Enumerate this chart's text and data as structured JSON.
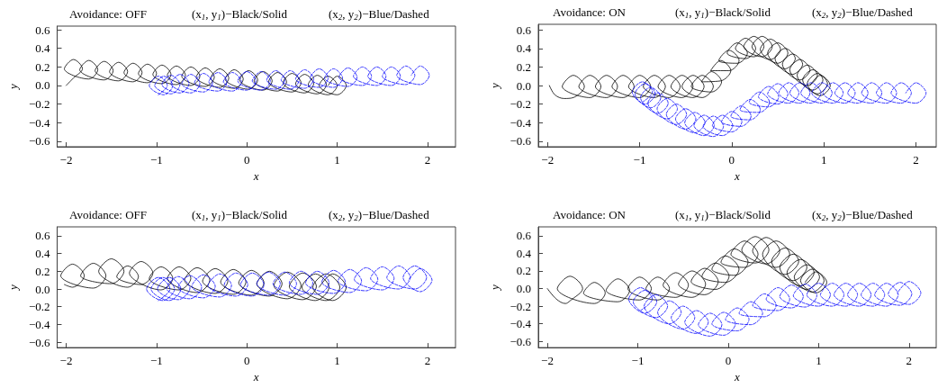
{
  "chart_data": [
    {
      "type": "line",
      "title": "Avoidance: OFF",
      "annotations": [
        "(x$_{1}$, y$_{1}$)−Black/Solid",
        "(x$_{2}$, y$_{2}$)−Blue/Dashed"
      ],
      "xlabel": "x",
      "ylabel": "y",
      "xlim": [
        -2.1,
        2.31
      ],
      "ylim": [
        -0.66,
        0.64
      ],
      "xticks": [
        -2,
        -1,
        0,
        1,
        2
      ],
      "yticks": [
        {
          "value": -0.6,
          "label": "−0.6"
        },
        {
          "value": -0.4,
          "label": "−0.4"
        },
        {
          "value": -0.2,
          "label": "−0.2"
        },
        {
          "value": 0,
          "label": "0.0"
        },
        0.2,
        0.4,
        0.6
      ],
      "marker": "none",
      "series": [
        {
          "color": "#000000",
          "line_style": "solid",
          "x": [
            -2,
            -1.92,
            -1.82,
            -1.92,
            -2.02,
            -1.75,
            -1.65,
            -1.75,
            -1.85,
            -1.58,
            -1.48,
            -1.58,
            -1.68,
            -1.42,
            -1.32,
            -1.42,
            -1.52,
            -1.26,
            -1.16,
            -1.26,
            -1.36,
            -1.1,
            -1.0,
            -1.1,
            -1.2,
            -0.94,
            -0.84,
            -0.94,
            -1.04,
            -0.78,
            -0.68,
            -0.78,
            -0.88,
            -0.62,
            -0.52,
            -0.62,
            -0.72,
            -0.46,
            -0.36,
            -0.46,
            -0.56,
            -0.3,
            -0.2,
            -0.3,
            -0.4,
            -0.14,
            -0.04,
            -0.14,
            -0.24,
            0.02,
            0.12,
            0.02,
            -0.08,
            0.18,
            0.28,
            0.18,
            0.08,
            0.34,
            0.44,
            0.34,
            0.24,
            0.5,
            0.6,
            0.5,
            0.4,
            0.64,
            0.74,
            0.64,
            0.54,
            0.78,
            0.88,
            0.78,
            0.68,
            0.9,
            1.0,
            0.9,
            0.8,
            1.0,
            1.1,
            1.0,
            0.9
          ],
          "values": [
            0,
            0.08,
            0.18,
            0.28,
            0.18,
            0.07,
            0.17,
            0.27,
            0.17,
            0.06,
            0.16,
            0.26,
            0.16,
            0.05,
            0.15,
            0.25,
            0.15,
            0.04,
            0.14,
            0.24,
            0.14,
            0.03,
            0.13,
            0.23,
            0.13,
            0.02,
            0.12,
            0.22,
            0.12,
            0.01,
            0.11,
            0.21,
            0.11,
            0,
            0.1,
            0.2,
            0.1,
            -0.01,
            0.09,
            0.19,
            0.09,
            -0.02,
            0.08,
            0.18,
            0.08,
            -0.03,
            0.07,
            0.17,
            0.07,
            -0.04,
            0.06,
            0.16,
            0.06,
            -0.05,
            0.05,
            0.15,
            0.05,
            -0.06,
            0.04,
            0.14,
            0.04,
            -0.07,
            0.03,
            0.13,
            0.03,
            -0.08,
            0.02,
            0.12,
            0.02,
            -0.09,
            0.01,
            0.11,
            0.01,
            -0.1,
            0,
            0.1,
            0,
            -0.1,
            0,
            0.1,
            0
          ]
        },
        {
          "color": "#0000ff",
          "line_style": "dashed",
          "x": [
            -0.98,
            -0.88,
            -0.98,
            -1.08,
            -0.92,
            -0.82,
            -0.92,
            -1.02,
            -0.84,
            -0.74,
            -0.84,
            -0.94,
            -0.74,
            -0.64,
            -0.74,
            -0.84,
            -0.62,
            -0.52,
            -0.62,
            -0.72,
            -0.48,
            -0.38,
            -0.48,
            -0.58,
            -0.32,
            -0.22,
            -0.32,
            -0.42,
            -0.16,
            -0.06,
            -0.16,
            -0.26,
            0,
            0.1,
            0,
            -0.1,
            0.16,
            0.26,
            0.16,
            0.06,
            0.32,
            0.42,
            0.32,
            0.22,
            0.48,
            0.58,
            0.48,
            0.38,
            0.64,
            0.74,
            0.64,
            0.54,
            0.8,
            0.9,
            0.8,
            0.7,
            0.96,
            1.06,
            0.96,
            0.86,
            1.12,
            1.22,
            1.12,
            1.02,
            1.28,
            1.38,
            1.28,
            1.18,
            1.44,
            1.54,
            1.44,
            1.34,
            1.6,
            1.7,
            1.6,
            1.5,
            1.76,
            1.86,
            1.76,
            1.66,
            1.92,
            2.02,
            1.92,
            1.82
          ],
          "values": [
            -0.1,
            0,
            0.1,
            0,
            -0.1,
            0,
            0.1,
            0,
            -0.09,
            0.01,
            0.11,
            0.01,
            -0.08,
            0.02,
            0.12,
            0.02,
            -0.08,
            0.02,
            0.12,
            0.02,
            -0.07,
            0.03,
            0.13,
            0.03,
            -0.06,
            0.04,
            0.14,
            0.04,
            -0.06,
            0.04,
            0.14,
            0.04,
            -0.05,
            0.05,
            0.15,
            0.05,
            -0.05,
            0.05,
            0.15,
            0.05,
            -0.04,
            0.06,
            0.16,
            0.06,
            -0.04,
            0.06,
            0.16,
            0.06,
            -0.03,
            0.07,
            0.17,
            0.07,
            -0.02,
            0.08,
            0.18,
            0.08,
            -0.02,
            0.08,
            0.18,
            0.08,
            -0.01,
            0.09,
            0.19,
            0.09,
            0,
            0.1,
            0.2,
            0.1,
            0,
            0.1,
            0.2,
            0.1,
            0,
            0.1,
            0.2,
            0.1,
            0.01,
            0.11,
            0.21,
            0.11,
            0.01,
            0.11,
            0.21,
            0.11
          ]
        }
      ]
    },
    {
      "type": "line",
      "title": "Avoidance: ON",
      "annotations": [
        "(x$_{1}$, y$_{1}$)−Black/Solid",
        "(x$_{2}$, y$_{2}$)−Blue/Dashed"
      ],
      "xlabel": "x",
      "ylabel": "y",
      "xlim": [
        -2.1,
        2.22
      ],
      "ylim": [
        -0.66,
        0.66
      ],
      "xticks": [
        -2,
        -1,
        0,
        1,
        2
      ],
      "yticks": [
        {
          "value": -0.6,
          "label": "−0.6"
        },
        {
          "value": -0.4,
          "label": "−0.4"
        },
        {
          "value": -0.2,
          "label": "−0.2"
        },
        {
          "value": 0,
          "label": "0.0"
        },
        0.2,
        0.4,
        0.6
      ],
      "marker": "none",
      "series": [
        {
          "color": "#000000",
          "line_style": "solid",
          "x": [
            -1.98,
            -1.92,
            -1.82,
            -1.72,
            -1.6,
            -1.72,
            -1.84,
            -1.54,
            -1.42,
            -1.54,
            -1.66,
            -1.36,
            -1.24,
            -1.36,
            -1.48,
            -1.18,
            -1.06,
            -1.18,
            -1.3,
            -1.0,
            -0.88,
            -1.0,
            -1.12,
            -0.84,
            -0.72,
            -0.84,
            -0.96,
            -0.68,
            -0.56,
            -0.68,
            -0.8,
            -0.54,
            -0.42,
            -0.54,
            -0.66,
            -0.42,
            -0.3,
            -0.42,
            -0.54,
            -0.32,
            -0.2,
            -0.32,
            -0.44,
            -0.22,
            -0.11,
            -0.22,
            -0.33,
            -0.12,
            -0.01,
            -0.12,
            -0.23,
            -0.03,
            0.08,
            -0.03,
            -0.14,
            0.06,
            0.17,
            0.06,
            -0.05,
            0.15,
            0.26,
            0.15,
            0.04,
            0.24,
            0.35,
            0.24,
            0.13,
            0.33,
            0.44,
            0.33,
            0.22,
            0.42,
            0.53,
            0.42,
            0.31,
            0.5,
            0.61,
            0.5,
            0.39,
            0.58,
            0.69,
            0.58,
            0.47,
            0.66,
            0.77,
            0.66,
            0.55,
            0.74,
            0.85,
            0.74,
            0.63,
            0.82,
            0.93,
            0.82,
            0.71,
            0.88,
            0.99,
            0.88,
            0.77,
            0.93,
            1.04,
            0.93,
            0.82,
            0.96,
            1.07,
            0.96,
            0.85
          ],
          "values": [
            0,
            -0.1,
            -0.14,
            -0.13,
            -0.01,
            0.11,
            -0.01,
            -0.13,
            -0.01,
            0.11,
            -0.01,
            -0.13,
            -0.01,
            0.11,
            -0.01,
            -0.13,
            -0.01,
            0.11,
            -0.01,
            -0.13,
            -0.01,
            0.11,
            -0.01,
            -0.13,
            -0.01,
            0.11,
            -0.01,
            -0.13,
            -0.01,
            0.11,
            -0.01,
            -0.13,
            -0.01,
            0.11,
            -0.01,
            -0.13,
            -0.01,
            0.11,
            -0.01,
            -0.13,
            -0.01,
            0.11,
            -0.01,
            -0.07,
            0.04,
            0.15,
            0.04,
            0.05,
            0.16,
            0.27,
            0.16,
            0.16,
            0.27,
            0.38,
            0.27,
            0.24,
            0.35,
            0.46,
            0.35,
            0.29,
            0.4,
            0.51,
            0.4,
            0.31,
            0.42,
            0.53,
            0.42,
            0.31,
            0.42,
            0.53,
            0.42,
            0.28,
            0.39,
            0.5,
            0.39,
            0.24,
            0.35,
            0.46,
            0.35,
            0.18,
            0.29,
            0.4,
            0.29,
            0.12,
            0.23,
            0.34,
            0.23,
            0.06,
            0.17,
            0.28,
            0.17,
            0,
            0.11,
            0.22,
            0.11,
            -0.05,
            0.06,
            0.17,
            0.06,
            -0.09,
            0.02,
            0.13,
            0.02,
            -0.11,
            0,
            0.11,
            0
          ]
        },
        {
          "color": "#0000ff",
          "line_style": "dashed",
          "x": [
            -0.97,
            -0.86,
            -0.97,
            -1.08,
            -0.94,
            -0.83,
            -0.94,
            -1.05,
            -0.88,
            -0.77,
            -0.88,
            -0.99,
            -0.8,
            -0.69,
            -0.8,
            -0.91,
            -0.7,
            -0.59,
            -0.7,
            -0.81,
            -0.6,
            -0.49,
            -0.6,
            -0.71,
            -0.5,
            -0.39,
            -0.5,
            -0.61,
            -0.4,
            -0.29,
            -0.4,
            -0.51,
            -0.3,
            -0.19,
            -0.3,
            -0.41,
            -0.2,
            -0.09,
            -0.2,
            -0.31,
            -0.1,
            0.01,
            -0.1,
            -0.21,
            0,
            0.11,
            0,
            -0.11,
            0.1,
            0.21,
            0.1,
            -0.01,
            0.2,
            0.31,
            0.2,
            0.09,
            0.3,
            0.41,
            0.3,
            0.19,
            0.4,
            0.51,
            0.4,
            0.29,
            0.5,
            0.61,
            0.5,
            0.39,
            0.62,
            0.73,
            0.62,
            0.51,
            0.74,
            0.85,
            0.74,
            0.63,
            0.86,
            0.97,
            0.86,
            0.75,
            0.98,
            1.09,
            0.98,
            0.87,
            1.1,
            1.21,
            1.1,
            0.99,
            1.23,
            1.34,
            1.23,
            1.12,
            1.37,
            1.48,
            1.37,
            1.26,
            1.52,
            1.63,
            1.52,
            1.41,
            1.68,
            1.79,
            1.68,
            1.57,
            1.84,
            1.95,
            1.84,
            1.73,
            2.0,
            2.11,
            2.0,
            1.89
          ],
          "values": [
            -0.18,
            -0.07,
            0.04,
            -0.07,
            -0.2,
            -0.09,
            0.02,
            -0.09,
            -0.24,
            -0.13,
            -0.02,
            -0.13,
            -0.3,
            -0.19,
            -0.08,
            -0.19,
            -0.36,
            -0.25,
            -0.14,
            -0.25,
            -0.42,
            -0.31,
            -0.2,
            -0.31,
            -0.47,
            -0.36,
            -0.25,
            -0.36,
            -0.51,
            -0.4,
            -0.29,
            -0.4,
            -0.54,
            -0.43,
            -0.32,
            -0.43,
            -0.55,
            -0.44,
            -0.33,
            -0.44,
            -0.54,
            -0.43,
            -0.32,
            -0.43,
            -0.5,
            -0.39,
            -0.28,
            -0.39,
            -0.44,
            -0.33,
            -0.22,
            -0.33,
            -0.37,
            -0.26,
            -0.15,
            -0.26,
            -0.29,
            -0.18,
            -0.07,
            -0.18,
            -0.23,
            -0.12,
            -0.01,
            -0.12,
            -0.2,
            -0.09,
            0.02,
            -0.09,
            -0.19,
            -0.08,
            0.03,
            -0.08,
            -0.19,
            -0.08,
            0.03,
            -0.08,
            -0.19,
            -0.08,
            0.03,
            -0.08,
            -0.19,
            -0.08,
            0.03,
            -0.08,
            -0.19,
            -0.08,
            0.03,
            -0.08,
            -0.19,
            -0.08,
            0.03,
            -0.08,
            -0.19,
            -0.08,
            0.03,
            -0.08,
            -0.19,
            -0.08,
            0.03,
            -0.08,
            -0.19,
            -0.08,
            0.03,
            -0.08,
            -0.19,
            -0.08,
            0.03,
            -0.08,
            -0.19,
            -0.08,
            0.03,
            -0.08
          ]
        }
      ]
    },
    {
      "type": "line",
      "title": "Avoidance: OFF",
      "annotations": [
        "(x$_{1}$, y$_{1}$)−Black/Solid",
        "(x$_{2}$, y$_{2}$)−Blue/Dashed"
      ],
      "xlabel": "x",
      "ylabel": "y",
      "xlim": [
        -2.1,
        2.31
      ],
      "ylim": [
        -0.66,
        0.7
      ],
      "xticks": [
        -2,
        -1,
        0,
        1,
        2
      ],
      "yticks": [
        {
          "value": -0.6,
          "label": "−0.6"
        },
        {
          "value": -0.4,
          "label": "−0.4"
        },
        {
          "value": -0.2,
          "label": "−0.2"
        },
        {
          "value": 0,
          "label": "0.0"
        },
        0.2,
        0.4,
        0.6
      ],
      "marker": "none",
      "series": [
        {
          "color": "#000000",
          "line_style": "solid",
          "x": [
            -2.02,
            -1.93,
            -1.8,
            -1.93,
            -2.06,
            -1.7,
            -1.56,
            -1.7,
            -1.84,
            -1.5,
            -1.36,
            -1.5,
            -1.64,
            -1.32,
            -1.2,
            -1.32,
            -1.44,
            -1.17,
            -1.04,
            -1.17,
            -1.3,
            -0.95,
            -0.82,
            -0.95,
            -1.08,
            -0.75,
            -0.62,
            -0.75,
            -0.88,
            -0.55,
            -0.41,
            -0.55,
            -0.69,
            -0.35,
            -0.21,
            -0.35,
            -0.49,
            -0.15,
            -0.01,
            -0.15,
            -0.29,
            0.05,
            0.19,
            0.05,
            -0.09,
            0.25,
            0.39,
            0.25,
            0.11,
            0.45,
            0.6,
            0.45,
            0.3,
            0.62,
            0.77,
            0.62,
            0.47,
            0.76,
            0.91,
            0.76,
            0.61,
            0.88,
            1.03,
            0.88,
            0.73,
            0.95,
            1.1,
            0.95,
            0.8
          ],
          "values": [
            0.05,
            0.02,
            0.15,
            0.28,
            0.15,
            0.01,
            0.15,
            0.29,
            0.15,
            0.06,
            0.2,
            0.34,
            0.2,
            0.02,
            0.14,
            0.26,
            0.14,
            0.05,
            0.18,
            0.31,
            0.18,
            -0.01,
            0.12,
            0.25,
            0.12,
            -0.01,
            0.12,
            0.25,
            0.12,
            -0.04,
            0.1,
            0.24,
            0.1,
            -0.05,
            0.09,
            0.23,
            0.09,
            -0.06,
            0.08,
            0.22,
            0.08,
            -0.07,
            0.07,
            0.21,
            0.07,
            -0.08,
            0.06,
            0.2,
            0.06,
            -0.11,
            0.04,
            0.19,
            0.04,
            -0.12,
            0.03,
            0.18,
            0.03,
            -0.13,
            0.02,
            0.17,
            0.02,
            -0.13,
            0.02,
            0.17,
            0.02,
            -0.13,
            0.02,
            0.17,
            0.02
          ]
        },
        {
          "color": "#0000ff",
          "line_style": "dashed",
          "x": [
            -0.98,
            -0.85,
            -0.98,
            -1.11,
            -0.93,
            -0.8,
            -0.93,
            -1.06,
            -0.86,
            -0.73,
            -0.86,
            -0.99,
            -0.76,
            -0.63,
            -0.76,
            -0.89,
            -0.63,
            -0.5,
            -0.63,
            -0.76,
            -0.48,
            -0.35,
            -0.48,
            -0.61,
            -0.3,
            -0.17,
            -0.3,
            -0.43,
            -0.12,
            0.01,
            -0.12,
            -0.25,
            0.06,
            0.19,
            0.06,
            -0.07,
            0.24,
            0.37,
            0.24,
            0.11,
            0.42,
            0.55,
            0.42,
            0.29,
            0.6,
            0.73,
            0.6,
            0.47,
            0.78,
            0.91,
            0.78,
            0.65,
            0.96,
            1.09,
            0.96,
            0.83,
            1.14,
            1.27,
            1.14,
            1.01,
            1.32,
            1.45,
            1.32,
            1.19,
            1.5,
            1.63,
            1.5,
            1.37,
            1.68,
            1.81,
            1.68,
            1.55,
            1.86,
            1.99,
            1.86,
            1.73,
            1.92,
            2.05,
            1.92,
            1.79
          ],
          "values": [
            -0.13,
            0,
            0.13,
            0,
            -0.13,
            0,
            0.13,
            0,
            -0.13,
            0,
            0.13,
            0,
            -0.12,
            0.01,
            0.14,
            0.01,
            -0.11,
            0.02,
            0.15,
            0.02,
            -0.1,
            0.03,
            0.16,
            0.03,
            -0.09,
            0.04,
            0.17,
            0.04,
            -0.08,
            0.05,
            0.18,
            0.05,
            -0.08,
            0.05,
            0.18,
            0.05,
            -0.07,
            0.06,
            0.19,
            0.06,
            -0.07,
            0.06,
            0.19,
            0.06,
            -0.06,
            0.07,
            0.2,
            0.07,
            -0.06,
            0.07,
            0.2,
            0.07,
            -0.05,
            0.08,
            0.21,
            0.08,
            -0.04,
            0.09,
            0.22,
            0.09,
            -0.02,
            0.11,
            0.24,
            0.11,
            -0.01,
            0.12,
            0.25,
            0.12,
            0,
            0.13,
            0.26,
            0.13,
            0,
            0.13,
            0.26,
            0.13,
            -0.03,
            0.1,
            0.23,
            0.1
          ]
        }
      ]
    },
    {
      "type": "line",
      "title": "Avoidance: ON",
      "annotations": [
        "(x$_{1}$, y$_{1}$)−Black/Solid",
        "(x$_{2}$, y$_{2}$)−Blue/Dashed"
      ],
      "xlabel": "x",
      "ylabel": "y",
      "xlim": [
        -2.1,
        2.3
      ],
      "ylim": [
        -0.67,
        0.7
      ],
      "xticks": [
        -2,
        -1,
        0,
        1,
        2
      ],
      "yticks": [
        {
          "value": -0.6,
          "label": "−0.6"
        },
        {
          "value": -0.4,
          "label": "−0.4"
        },
        {
          "value": -0.2,
          "label": "−0.2"
        },
        {
          "value": 0,
          "label": "0.0"
        },
        0.2,
        0.4,
        0.6
      ],
      "marker": "none",
      "series": [
        {
          "color": "#000000",
          "line_style": "solid",
          "x": [
            -2.0,
            -1.9,
            -1.8,
            -1.75,
            -1.61,
            -1.75,
            -1.89,
            -1.48,
            -1.36,
            -1.48,
            -1.6,
            -1.22,
            -1.09,
            -1.22,
            -1.35,
            -0.98,
            -0.85,
            -0.98,
            -1.11,
            -0.78,
            -0.65,
            -0.78,
            -0.91,
            -0.58,
            -0.44,
            -0.58,
            -0.72,
            -0.4,
            -0.25,
            -0.4,
            -0.55,
            -0.26,
            -0.11,
            -0.26,
            -0.41,
            -0.14,
            0.01,
            -0.14,
            -0.29,
            -0.03,
            0.12,
            -0.03,
            -0.18,
            0.07,
            0.22,
            0.07,
            -0.08,
            0.18,
            0.33,
            0.18,
            0.03,
            0.3,
            0.45,
            0.3,
            0.15,
            0.42,
            0.57,
            0.42,
            0.27,
            0.53,
            0.68,
            0.53,
            0.38,
            0.63,
            0.78,
            0.63,
            0.48,
            0.72,
            0.87,
            0.72,
            0.57,
            0.8,
            0.95,
            0.8,
            0.65,
            0.87,
            1.01,
            0.87,
            0.73,
            0.93,
            1.06,
            0.93,
            0.8,
            0.97,
            1.09,
            0.97,
            0.85
          ],
          "values": [
            0,
            -0.12,
            -0.17,
            -0.14,
            0,
            0.14,
            0,
            -0.17,
            -0.05,
            0.07,
            -0.05,
            -0.15,
            -0.02,
            0.11,
            -0.02,
            -0.13,
            0,
            0.13,
            0,
            -0.13,
            0,
            0.13,
            0,
            -0.1,
            0.04,
            0.18,
            0.04,
            -0.1,
            0.05,
            0.2,
            0.05,
            -0.07,
            0.08,
            0.23,
            0.08,
            -0.01,
            0.14,
            0.29,
            0.14,
            0.07,
            0.22,
            0.37,
            0.22,
            0.15,
            0.3,
            0.45,
            0.3,
            0.24,
            0.39,
            0.54,
            0.39,
            0.29,
            0.44,
            0.59,
            0.44,
            0.28,
            0.43,
            0.58,
            0.43,
            0.24,
            0.39,
            0.54,
            0.39,
            0.16,
            0.31,
            0.46,
            0.31,
            0.09,
            0.24,
            0.39,
            0.24,
            0.03,
            0.18,
            0.33,
            0.18,
            -0.01,
            0.13,
            0.27,
            0.13,
            -0.04,
            0.09,
            0.22,
            0.09,
            -0.05,
            0.07,
            0.19,
            0.07
          ]
        },
        {
          "color": "#0000ff",
          "line_style": "dashed",
          "x": [
            -0.97,
            -0.84,
            -0.97,
            -1.1,
            -0.92,
            -0.79,
            -0.92,
            -1.05,
            -0.8,
            -0.67,
            -0.8,
            -0.93,
            -0.65,
            -0.52,
            -0.65,
            -0.78,
            -0.5,
            -0.37,
            -0.5,
            -0.63,
            -0.35,
            -0.22,
            -0.35,
            -0.48,
            -0.2,
            -0.07,
            -0.2,
            -0.33,
            -0.05,
            0.08,
            -0.05,
            -0.18,
            0.1,
            0.23,
            0.1,
            -0.03,
            0.25,
            0.38,
            0.25,
            0.12,
            0.4,
            0.53,
            0.4,
            0.27,
            0.55,
            0.68,
            0.55,
            0.42,
            0.7,
            0.83,
            0.7,
            0.57,
            0.85,
            0.98,
            0.85,
            0.72,
            1.0,
            1.13,
            1.0,
            0.87,
            1.15,
            1.28,
            1.15,
            1.02,
            1.3,
            1.43,
            1.3,
            1.17,
            1.45,
            1.58,
            1.45,
            1.32,
            1.6,
            1.73,
            1.6,
            1.47,
            1.75,
            1.88,
            1.75,
            1.62,
            1.9,
            2.03,
            1.9,
            1.77,
            2.0,
            2.13,
            2.0,
            1.87
          ],
          "values": [
            -0.25,
            -0.12,
            0.01,
            -0.12,
            -0.28,
            -0.15,
            -0.02,
            -0.15,
            -0.33,
            -0.2,
            -0.07,
            -0.2,
            -0.4,
            -0.27,
            -0.14,
            -0.27,
            -0.46,
            -0.33,
            -0.2,
            -0.33,
            -0.51,
            -0.38,
            -0.25,
            -0.38,
            -0.54,
            -0.41,
            -0.28,
            -0.41,
            -0.53,
            -0.4,
            -0.27,
            -0.4,
            -0.48,
            -0.35,
            -0.22,
            -0.35,
            -0.41,
            -0.28,
            -0.15,
            -0.28,
            -0.32,
            -0.19,
            -0.06,
            -0.19,
            -0.25,
            -0.12,
            0.01,
            -0.12,
            -0.22,
            -0.09,
            0.04,
            -0.09,
            -0.21,
            -0.08,
            0.05,
            -0.08,
            -0.2,
            -0.07,
            0.06,
            -0.07,
            -0.2,
            -0.07,
            0.06,
            -0.07,
            -0.2,
            -0.07,
            0.06,
            -0.07,
            -0.2,
            -0.07,
            0.06,
            -0.07,
            -0.2,
            -0.07,
            0.06,
            -0.07,
            -0.2,
            -0.07,
            0.06,
            -0.07,
            -0.19,
            -0.06,
            0.07,
            -0.06,
            -0.18,
            -0.05,
            0.08,
            -0.05
          ]
        }
      ]
    }
  ]
}
